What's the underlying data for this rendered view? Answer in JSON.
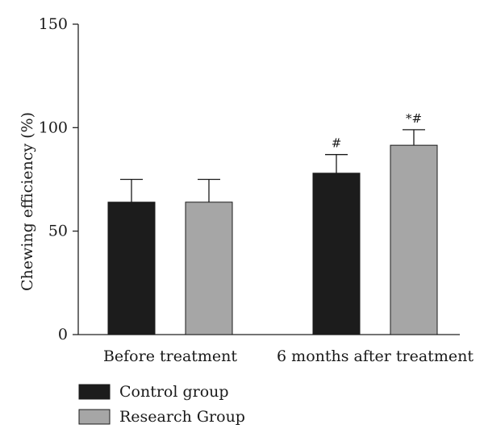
{
  "chart_data": {
    "type": "bar",
    "title": "",
    "xlabel": "",
    "ylabel": "Chewing efficiency (%)",
    "ylim": [
      0,
      150
    ],
    "yticks": [
      0,
      50,
      100,
      150
    ],
    "ytick_labels": [
      "0",
      "50",
      "100",
      "150"
    ],
    "grid": false,
    "legend_position": "bottom-left",
    "categories": [
      "Before treatment",
      "6 months after treatment"
    ],
    "series": [
      {
        "name": "Control group",
        "color": "#1c1c1c",
        "values": [
          64,
          78
        ],
        "errors": [
          11,
          9
        ],
        "annotations": [
          "",
          "#"
        ]
      },
      {
        "name": "Research Group",
        "color": "#a6a6a6",
        "values": [
          64,
          91.5
        ],
        "errors": [
          11,
          7.5
        ],
        "annotations": [
          "",
          "*#"
        ]
      }
    ]
  }
}
